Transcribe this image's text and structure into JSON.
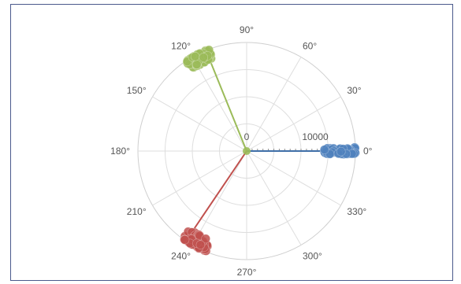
{
  "chart_data": {
    "type": "scatter",
    "coordinate_system": "polar",
    "angle_unit": "degrees",
    "angular_ticks": [
      {
        "angle": 0,
        "label": "0°"
      },
      {
        "angle": 30,
        "label": "30°"
      },
      {
        "angle": 60,
        "label": "60°"
      },
      {
        "angle": 90,
        "label": "90°"
      },
      {
        "angle": 120,
        "label": "120°"
      },
      {
        "angle": 150,
        "label": "150°"
      },
      {
        "angle": 180,
        "label": "180°"
      },
      {
        "angle": 210,
        "label": "210°"
      },
      {
        "angle": 240,
        "label": "240°"
      },
      {
        "angle": 270,
        "label": "270°"
      },
      {
        "angle": 300,
        "label": "300°"
      },
      {
        "angle": 330,
        "label": "330°"
      }
    ],
    "radial_ticks": [
      {
        "value": 0,
        "label": "0"
      },
      {
        "value": 10000,
        "label": "10000"
      }
    ],
    "radial_range": [
      0,
      20000
    ],
    "grid": true,
    "series": [
      {
        "color": "#4f81bd",
        "line_color": "#3f6fa8",
        "line_end": {
          "angle": 0,
          "r": 17000
        },
        "cluster_center": {
          "angle": 0,
          "r": 17500
        },
        "cluster_extent": {
          "r_span": 6500,
          "angle_span": 4
        }
      },
      {
        "color": "#9bbb59",
        "line_color": "#9bbb59",
        "line_end": {
          "angle": 112,
          "r": 18500
        },
        "cluster_center": {
          "angle": 117,
          "r": 19500
        },
        "cluster_extent": {
          "r_span": 3000,
          "angle_span": 14
        }
      },
      {
        "color": "#c0504d",
        "line_color": "#c0504d",
        "line_end": {
          "angle": 236,
          "r": 19000
        },
        "cluster_center": {
          "angle": 241,
          "r": 19500
        },
        "cluster_extent": {
          "r_span": 3500,
          "angle_span": 14
        }
      }
    ]
  }
}
